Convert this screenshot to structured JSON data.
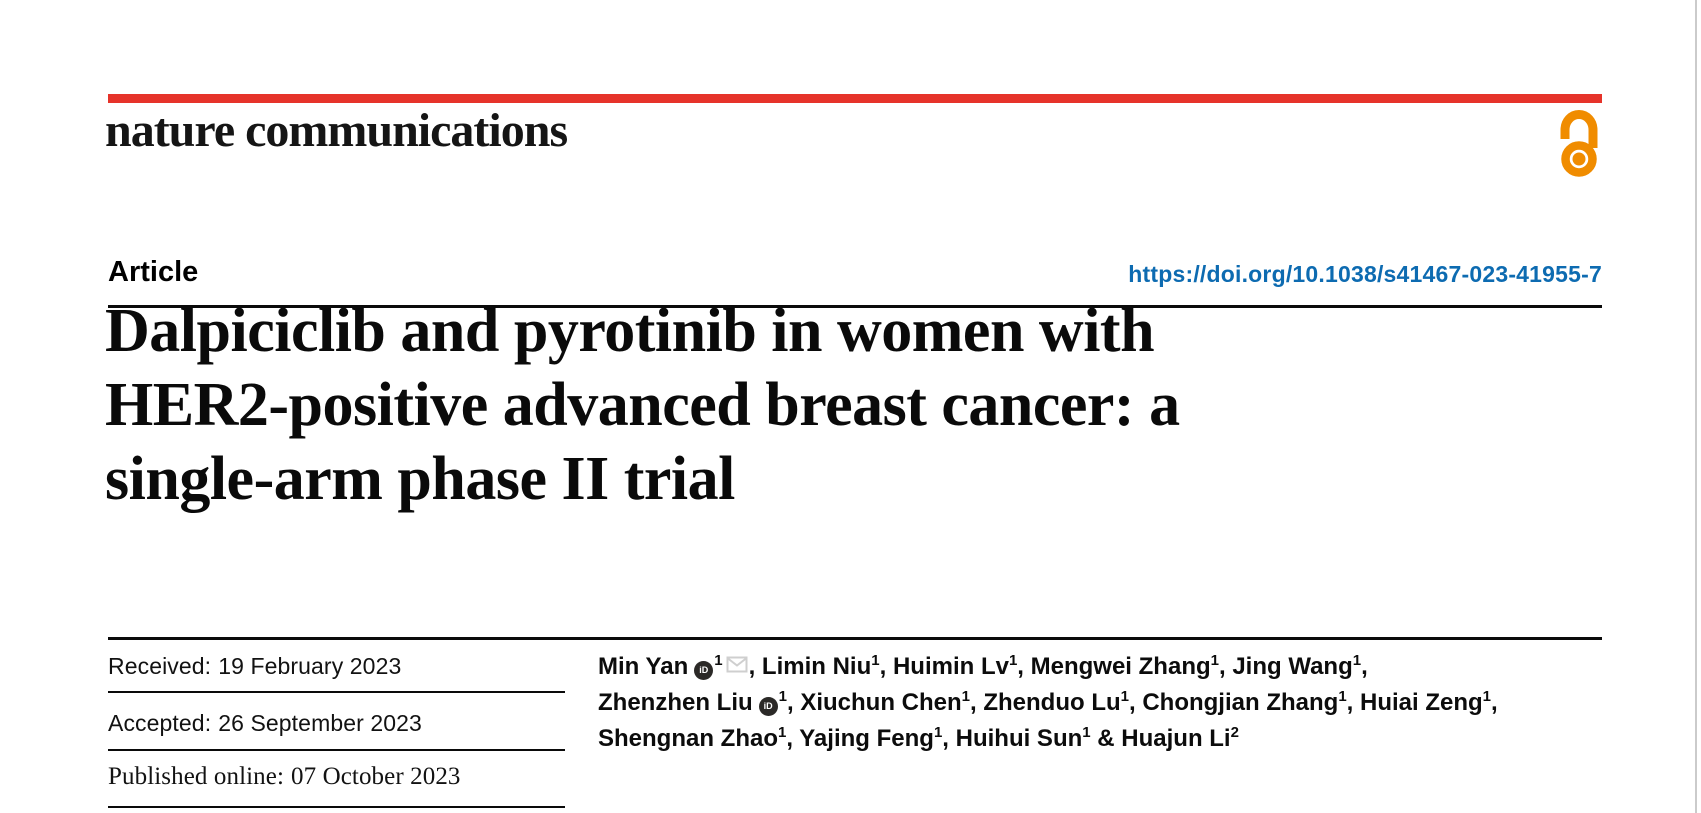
{
  "brand": {
    "logo_text": "nature communications",
    "bar_color": "#e6332a",
    "open_access_icon": "open-access-lock-icon",
    "open_access_color": "#f08c00"
  },
  "header": {
    "article_label": "Article",
    "doi_text": "https://doi.org/10.1038/s41467-023-41955-7",
    "doi_color": "#0d6bb1"
  },
  "title": {
    "lines": [
      "Dalpiciclib and pyrotinib in women with",
      "HER2-positive advanced breast cancer: a",
      "single-arm phase II trial"
    ]
  },
  "meta": {
    "rows": [
      {
        "label": "Received:",
        "value": "19 February 2023"
      },
      {
        "label": "Accepted:",
        "value": "26 September 2023"
      },
      {
        "label": "Published online:",
        "value": "07 October 2023"
      }
    ]
  },
  "authors": {
    "lines": [
      [
        {
          "t": "Min Yan"
        },
        {
          "icon": "orcid"
        },
        {
          "sup": "1"
        },
        {
          "icon": "email"
        },
        {
          "t": ", Limin Niu"
        },
        {
          "sup": "1"
        },
        {
          "t": ", Huimin Lv"
        },
        {
          "sup": "1"
        },
        {
          "t": ", Mengwei Zhang"
        },
        {
          "sup": "1"
        },
        {
          "t": ", Jing Wang"
        },
        {
          "sup": "1"
        },
        {
          "t": ","
        }
      ],
      [
        {
          "t": "Zhenzhen Liu"
        },
        {
          "icon": "orcid"
        },
        {
          "sup": "1"
        },
        {
          "t": ", Xiuchun Chen"
        },
        {
          "sup": "1"
        },
        {
          "t": ", Zhenduo Lu"
        },
        {
          "sup": "1"
        },
        {
          "t": ", Chongjian Zhang"
        },
        {
          "sup": "1"
        },
        {
          "t": ", Huiai Zeng"
        },
        {
          "sup": "1"
        },
        {
          "t": ","
        }
      ],
      [
        {
          "t": "Shengnan Zhao"
        },
        {
          "sup": "1"
        },
        {
          "t": ", Yajing Feng"
        },
        {
          "sup": "1"
        },
        {
          "t": ", Huihui Sun"
        },
        {
          "sup": "1"
        },
        {
          "t": " & Huajun Li"
        },
        {
          "sup": "2"
        }
      ]
    ]
  }
}
